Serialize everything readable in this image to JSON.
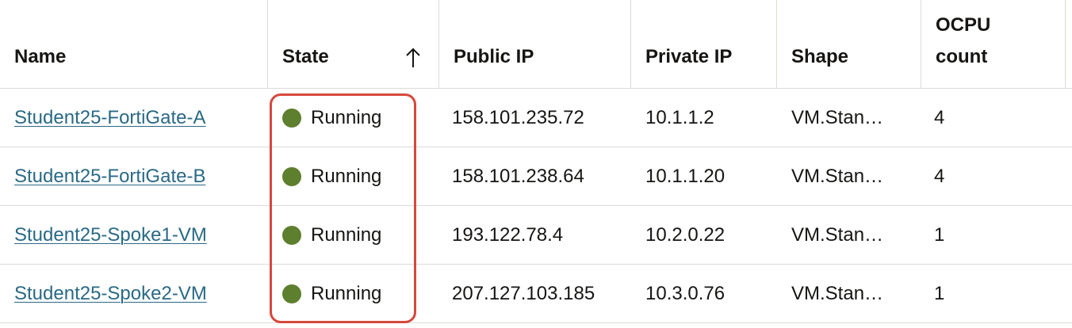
{
  "colors": {
    "link": "#2a6985",
    "running_dot": "#5d7f2e",
    "highlight": "#d6483b",
    "border": "#dcdbd7"
  },
  "table": {
    "headers": {
      "name": "Name",
      "state": "State",
      "public_ip": "Public IP",
      "private_ip": "Private IP",
      "shape": "Shape",
      "ocpu": "OCPU\ncount"
    },
    "sort": {
      "column": "State",
      "direction": "ascending",
      "icon": "arrow-up-icon"
    },
    "rows": [
      {
        "name": "Student25-FortiGate-A",
        "state": "Running",
        "public_ip": "158.101.235.72",
        "private_ip": "10.1.1.2",
        "shape": "VM.Stan…",
        "ocpu": "4"
      },
      {
        "name": "Student25-FortiGate-B",
        "state": "Running",
        "public_ip": "158.101.238.64",
        "private_ip": "10.1.1.20",
        "shape": "VM.Stan…",
        "ocpu": "4"
      },
      {
        "name": "Student25-Spoke1-VM",
        "state": "Running",
        "public_ip": "193.122.78.4",
        "private_ip": "10.2.0.22",
        "shape": "VM.Stan…",
        "ocpu": "1"
      },
      {
        "name": "Student25-Spoke2-VM",
        "state": "Running",
        "public_ip": "207.127.103.185",
        "private_ip": "10.3.0.76",
        "shape": "VM.Stan…",
        "ocpu": "1"
      }
    ]
  }
}
